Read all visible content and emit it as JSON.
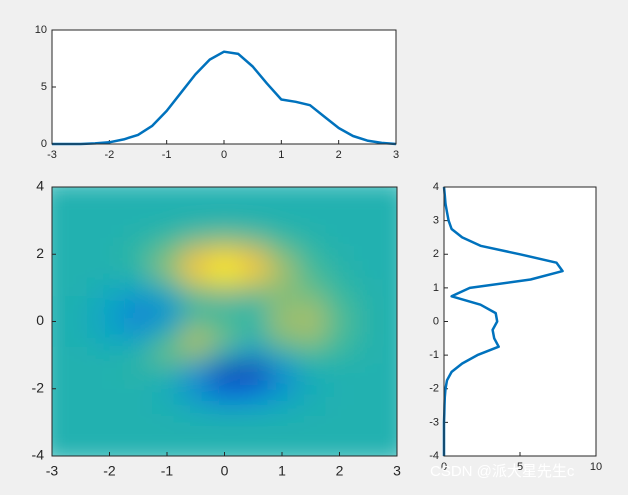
{
  "chart_data": [
    {
      "type": "line",
      "x": [
        -3,
        -2.75,
        -2.5,
        -2.25,
        -2,
        -1.75,
        -1.5,
        -1.25,
        -1,
        -0.75,
        -0.5,
        -0.25,
        0,
        0.25,
        0.5,
        0.75,
        1,
        1.25,
        1.5,
        1.75,
        2,
        2.25,
        2.5,
        2.75,
        3
      ],
      "values": [
        0,
        0,
        0,
        0.05,
        0.15,
        0.4,
        0.8,
        1.6,
        2.9,
        4.5,
        6.1,
        7.4,
        8.1,
        7.9,
        6.8,
        5.3,
        3.9,
        3.7,
        3.4,
        2.4,
        1.4,
        0.7,
        0.3,
        0.1,
        0
      ],
      "color": "#0072bd",
      "xlim": [
        -3,
        3
      ],
      "xticks": [
        -3,
        -2,
        -1,
        0,
        1,
        2,
        3
      ],
      "ylim": [
        0,
        10
      ],
      "yticks": [
        0,
        5,
        10
      ]
    },
    {
      "type": "heatmap",
      "x": [
        -3,
        -2.5,
        -2,
        -1.5,
        -1,
        -0.5,
        0,
        0.5,
        1,
        1.5,
        2,
        2.5,
        3
      ],
      "y": [
        4,
        3.5,
        3,
        2.5,
        2,
        1.5,
        1,
        0.5,
        0,
        -0.5,
        -1,
        -1.5,
        -2,
        -2.5,
        -3,
        -3.5,
        -4
      ],
      "z": [
        [
          0,
          0,
          0,
          0,
          0,
          0,
          0,
          0,
          0,
          0,
          0,
          0,
          0
        ],
        [
          0,
          0,
          0,
          0,
          0,
          0,
          0,
          0,
          0,
          0,
          0,
          0,
          0
        ],
        [
          0,
          0,
          0,
          0,
          0,
          0,
          0,
          0,
          0,
          0,
          0,
          0,
          0
        ],
        [
          0,
          0,
          0,
          0.2,
          0.7,
          1.5,
          1.9,
          1.5,
          0.7,
          0.2,
          0,
          0,
          0
        ],
        [
          0,
          0,
          0.1,
          0.6,
          2.1,
          4.6,
          5.9,
          4.6,
          2.2,
          0.7,
          0.1,
          0,
          0
        ],
        [
          0,
          0,
          0,
          0.5,
          2.6,
          6.2,
          8.0,
          6.3,
          3.3,
          1.2,
          0.3,
          0,
          0
        ],
        [
          0,
          0,
          -0.5,
          -0.9,
          0.2,
          2.8,
          3.7,
          2.9,
          2.4,
          1.6,
          0.6,
          0.1,
          0
        ],
        [
          0,
          -0.2,
          -1.1,
          -2.5,
          -2.0,
          0.4,
          0.5,
          0.4,
          2.4,
          2.6,
          1.1,
          0.2,
          0
        ],
        [
          0,
          -0.3,
          -1.3,
          -2.8,
          -1.7,
          1.5,
          1.0,
          0.4,
          2.9,
          3.3,
          1.4,
          0.3,
          0
        ],
        [
          0,
          -0.2,
          -0.8,
          -1.2,
          0.8,
          3.6,
          2.0,
          0.4,
          2.2,
          2.6,
          1.1,
          0.2,
          0
        ],
        [
          0,
          0,
          -0.1,
          0.3,
          1.9,
          2.2,
          -0.7,
          -2.2,
          -0.3,
          0.9,
          0.5,
          0.1,
          0
        ],
        [
          0,
          0,
          0.1,
          0.3,
          0.1,
          -2.2,
          -5.7,
          -5.8,
          -2.6,
          -0.4,
          0,
          0,
          0
        ],
        [
          0,
          0,
          0,
          0,
          -0.6,
          -2.6,
          -4.8,
          -4.3,
          -2.1,
          -0.5,
          -0.1,
          0,
          0
        ],
        [
          0,
          0,
          0,
          0,
          -0.2,
          -0.9,
          -1.6,
          -1.4,
          -0.7,
          -0.2,
          0,
          0,
          0
        ],
        [
          0,
          0,
          0,
          0,
          0,
          0,
          0,
          0,
          0,
          0,
          0,
          0,
          0
        ],
        [
          0,
          0,
          0,
          0,
          0,
          0,
          0,
          0,
          0,
          0,
          0,
          0,
          0
        ],
        [
          0,
          0,
          0,
          0,
          0,
          0,
          0,
          0,
          0,
          0,
          0,
          0,
          0
        ]
      ],
      "clim": [
        -6.5,
        8.1
      ],
      "colormap": [
        "#352a87",
        "#0363e1",
        "#1485d4",
        "#06a7c6",
        "#38b99e",
        "#92bf73",
        "#d9ba56",
        "#fcce2e",
        "#f9fb0e"
      ],
      "xlim": [
        -3,
        3
      ],
      "xticks": [
        -3,
        -2,
        -1,
        0,
        1,
        2,
        3
      ],
      "ylim": [
        -4,
        4
      ],
      "yticks": [
        -4,
        -2,
        0,
        2,
        4
      ]
    },
    {
      "type": "line",
      "orientation": "horizontal",
      "y": [
        -4,
        -3.75,
        -3.5,
        -3.25,
        -3,
        -2.75,
        -2.5,
        -2.25,
        -2,
        -1.75,
        -1.5,
        -1.25,
        -1,
        -0.75,
        -0.5,
        -0.25,
        0,
        0.25,
        0.5,
        0.75,
        1,
        1.25,
        1.5,
        1.75,
        2,
        2.25,
        2.5,
        2.75,
        3,
        3.25,
        3.5,
        3.75,
        4
      ],
      "values": [
        0,
        0,
        0,
        0,
        0,
        0.02,
        0.03,
        0.05,
        0.1,
        0.2,
        0.5,
        1.2,
        2.2,
        3.6,
        3.3,
        3.2,
        3.5,
        3.4,
        2.4,
        0.5,
        1.7,
        5.7,
        7.8,
        7.4,
        5.0,
        2.4,
        1.2,
        0.5,
        0.3,
        0.2,
        0.1,
        0.05,
        0
      ],
      "color": "#0072bd",
      "xlim": [
        0,
        10
      ],
      "xticks": [
        0,
        5,
        10
      ],
      "ylim": [
        -4,
        4
      ],
      "yticks": [
        -4,
        -3,
        -2,
        -1,
        0,
        1,
        2,
        3,
        4
      ]
    }
  ],
  "watermark": "CSDN @派大星先生c"
}
